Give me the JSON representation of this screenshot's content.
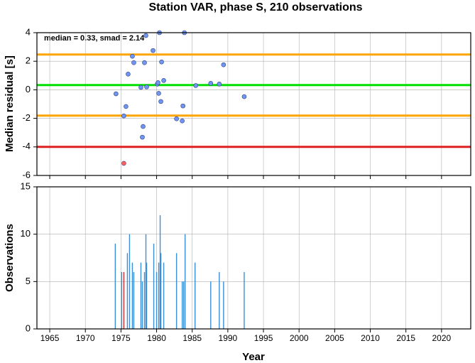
{
  "chart_data": [
    {
      "type": "scatter",
      "title": "Station VAR, phase S, 210 observations",
      "ylabel": "Median residual [s]",
      "annotation": "median = 0.33, smad = 2.14",
      "xlim": [
        1963.2,
        2024.1
      ],
      "xticks": [
        1965,
        1970,
        1975,
        1980,
        1985,
        1990,
        1995,
        2000,
        2005,
        2010,
        2015,
        2020
      ],
      "ylim": [
        -6,
        4
      ],
      "yticks": [
        -6,
        -4,
        -2,
        0,
        2,
        4
      ],
      "grid": true,
      "hlines": [
        {
          "value": 2.47,
          "color": "#ffa500"
        },
        {
          "value": 0.33,
          "color": "#00e000"
        },
        {
          "value": -1.81,
          "color": "#ffa500"
        },
        {
          "value": -4,
          "color": "#e02020"
        }
      ],
      "series": [
        {
          "color": "#6f96f0",
          "x": [
            1974.3,
            1975.4,
            1975.7,
            1976.0,
            1976.6,
            1976.8,
            1977.8,
            1978.0,
            1978.1,
            1978.3,
            1978.5,
            1978.6,
            1979.5,
            1980.1,
            1980.2,
            1980.3,
            1980.4,
            1980.6,
            1980.7,
            1981.0,
            1982.8,
            1983.6,
            1983.7,
            1983.9,
            1985.5,
            1987.6,
            1988.8,
            1989.4,
            1992.3
          ],
          "values": [
            -0.28,
            -1.83,
            -1.17,
            1.1,
            2.35,
            1.9,
            0.17,
            -3.32,
            -2.57,
            1.9,
            3.8,
            0.2,
            2.75,
            0.4,
            0.5,
            -0.25,
            4.0,
            -0.82,
            1.95,
            0.65,
            -2.03,
            -2.18,
            -1.13,
            4.0,
            0.3,
            0.45,
            0.4,
            1.75,
            -0.48
          ]
        },
        {
          "color": "#ff6060",
          "x": [
            1975.4
          ],
          "values": [
            -5.15
          ]
        }
      ]
    },
    {
      "type": "bar",
      "ylabel": "Observations",
      "xlabel": "Year",
      "xlim": [
        1963.2,
        2024.1
      ],
      "xticks": [
        1965,
        1970,
        1975,
        1980,
        1985,
        1990,
        1995,
        2000,
        2005,
        2010,
        2015,
        2020
      ],
      "ylim": [
        0,
        15
      ],
      "yticks": [
        0,
        5,
        10,
        15
      ],
      "grid": true,
      "series": [
        {
          "color": "#3a8fd8",
          "x": [
            1974.2,
            1975.1,
            1975.9,
            1976.2,
            1976.6,
            1976.8,
            1977.8,
            1978.0,
            1978.3,
            1978.5,
            1978.6,
            1979.6,
            1980.0,
            1980.3,
            1980.5,
            1980.6,
            1981.0,
            1982.8,
            1983.6,
            1983.8,
            1984.0,
            1985.4,
            1987.6,
            1988.8,
            1989.4,
            1992.3
          ],
          "values": [
            9,
            6,
            8,
            10,
            7,
            6,
            7,
            5,
            6,
            10,
            7,
            9,
            6,
            7,
            12,
            8,
            7,
            8,
            5,
            5,
            10,
            7,
            5,
            6,
            5,
            6
          ]
        },
        {
          "color": "#d03030",
          "x": [
            1975.4
          ],
          "values": [
            6
          ]
        }
      ]
    }
  ]
}
